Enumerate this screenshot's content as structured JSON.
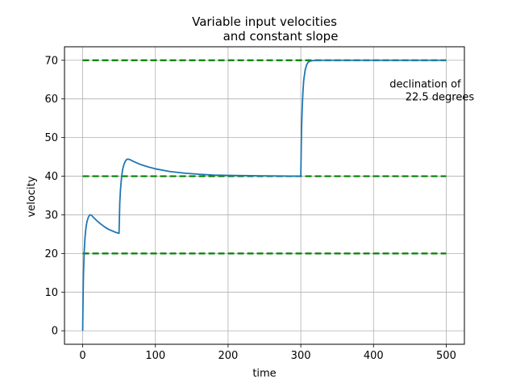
{
  "chart_data": {
    "type": "line",
    "title_line1": "Variable input velocities",
    "title_line2": "and constant slope",
    "xlabel": "time",
    "ylabel": "velocity",
    "xlim": [
      -25,
      525
    ],
    "ylim": [
      -3.5,
      73.5
    ],
    "xticks": [
      0,
      100,
      200,
      300,
      400,
      500
    ],
    "yticks": [
      0,
      10,
      20,
      30,
      40,
      50,
      60,
      70
    ],
    "grid": true,
    "annotation_line1": "declination of",
    "annotation_line2": "22.5 degrees",
    "annotation_pos": [
      480,
      64
    ],
    "reference_lines": {
      "color": "#008000",
      "style": "dashed",
      "levels": [
        20,
        40,
        70
      ],
      "x_range": [
        0,
        500
      ]
    },
    "series": [
      {
        "name": "velocity",
        "color": "#1f77b4",
        "points": [
          [
            0,
            0
          ],
          [
            0.5,
            8
          ],
          [
            1,
            14
          ],
          [
            2,
            20
          ],
          [
            3,
            23.5
          ],
          [
            4,
            25.8
          ],
          [
            5,
            27.3
          ],
          [
            6,
            28.3
          ],
          [
            8,
            29.5
          ],
          [
            10,
            30
          ],
          [
            12,
            29.9
          ],
          [
            15,
            29.3
          ],
          [
            20,
            28.4
          ],
          [
            25,
            27.6
          ],
          [
            30,
            26.9
          ],
          [
            35,
            26.3
          ],
          [
            40,
            25.9
          ],
          [
            45,
            25.5
          ],
          [
            50,
            25.2
          ],
          [
            50.5,
            29
          ],
          [
            51,
            33
          ],
          [
            52,
            36.5
          ],
          [
            53,
            38.8
          ],
          [
            54,
            40.5
          ],
          [
            55,
            41.8
          ],
          [
            57,
            43.2
          ],
          [
            59,
            44
          ],
          [
            61,
            44.4
          ],
          [
            63,
            44.4
          ],
          [
            66,
            44.2
          ],
          [
            70,
            43.8
          ],
          [
            80,
            43
          ],
          [
            90,
            42.4
          ],
          [
            100,
            41.9
          ],
          [
            120,
            41.2
          ],
          [
            140,
            40.8
          ],
          [
            160,
            40.5
          ],
          [
            180,
            40.3
          ],
          [
            200,
            40.2
          ],
          [
            240,
            40.1
          ],
          [
            300,
            40
          ],
          [
            300.5,
            46
          ],
          [
            301,
            52
          ],
          [
            302,
            58
          ],
          [
            303,
            62
          ],
          [
            304,
            64.8
          ],
          [
            306,
            67.5
          ],
          [
            308,
            68.8
          ],
          [
            310,
            69.5
          ],
          [
            313,
            69.8
          ],
          [
            316,
            69.9
          ],
          [
            320,
            70
          ],
          [
            400,
            70
          ],
          [
            500,
            70
          ]
        ]
      }
    ]
  }
}
